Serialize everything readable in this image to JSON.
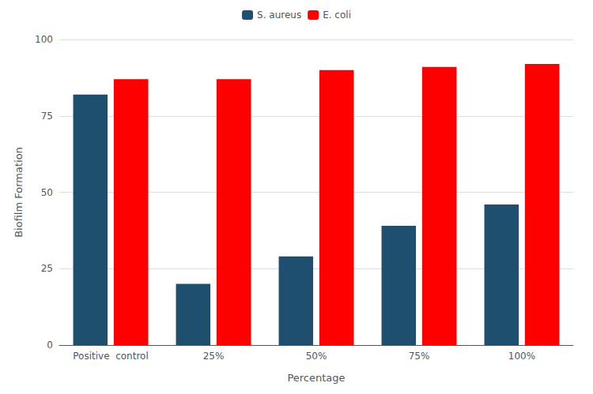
{
  "chart_data": {
    "type": "bar",
    "categories": [
      "Positive  control",
      "25%",
      "50%",
      "75%",
      "100%"
    ],
    "series": [
      {
        "name": "S. aureus",
        "color": "#1e4f6e",
        "values": [
          82,
          20,
          29,
          39,
          46
        ]
      },
      {
        "name": "E. coli",
        "color": "#ff0000",
        "values": [
          87,
          87,
          90,
          91,
          92
        ]
      }
    ],
    "xlabel": "Percentage",
    "ylabel": "Biofilm Formation",
    "ylim": [
      0,
      100
    ],
    "yticks": [
      0,
      25,
      50,
      75,
      100
    ],
    "grid": true,
    "legend": "top"
  }
}
